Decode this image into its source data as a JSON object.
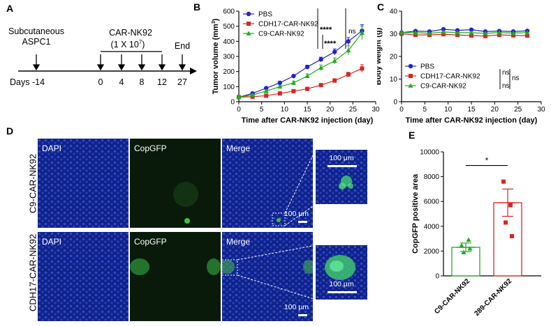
{
  "panels": {
    "a": "A",
    "b": "B",
    "c": "C",
    "d": "D",
    "e": "E"
  },
  "schema": {
    "subcutaneous": "Subcutaneous",
    "aspc1": "ASPC1",
    "carnk92": "CAR-NK92",
    "dose": "(1 X 10",
    "dose_exp": "7",
    "dose_close": ")",
    "end": "End",
    "days_label": "Days -14",
    "days": [
      "0",
      "4",
      "8",
      "12",
      "27"
    ]
  },
  "chart_data": [
    {
      "type": "line",
      "xlabel": "Time after CAR-NK92 injection (day)",
      "ylabel": "Tumor volume (mm",
      "ylabel_sup": "3",
      "ylabel_close": ")",
      "xlim": [
        0,
        30
      ],
      "ylim": [
        0,
        600
      ],
      "xticks": [
        "0",
        "5",
        "10",
        "15",
        "20",
        "25",
        "30"
      ],
      "yticks": [
        "0",
        "100",
        "200",
        "300",
        "400",
        "500",
        "600"
      ],
      "legend": "top-left",
      "series": [
        {
          "name": "PBS",
          "color": "#2222cc",
          "marker": "circle",
          "x": [
            0,
            3,
            6,
            9,
            12,
            15,
            18,
            21,
            24,
            27
          ],
          "y": [
            30,
            55,
            90,
            125,
            170,
            230,
            280,
            330,
            400,
            470
          ],
          "err": [
            5,
            5,
            8,
            8,
            10,
            12,
            15,
            20,
            25,
            40
          ]
        },
        {
          "name": "CDH17-CAR-NK92",
          "color": "#dd2222",
          "marker": "square",
          "x": [
            0,
            3,
            6,
            9,
            12,
            15,
            18,
            21,
            24,
            27
          ],
          "y": [
            30,
            33,
            40,
            55,
            70,
            85,
            110,
            140,
            180,
            220
          ],
          "err": [
            5,
            3,
            4,
            5,
            6,
            8,
            10,
            12,
            15,
            25
          ]
        },
        {
          "name": "C9-CAR-NK92",
          "color": "#22aa22",
          "marker": "triangle",
          "x": [
            0,
            3,
            6,
            9,
            12,
            15,
            18,
            21,
            24,
            27
          ],
          "y": [
            30,
            45,
            70,
            100,
            125,
            170,
            225,
            270,
            340,
            455
          ],
          "err": [
            5,
            5,
            8,
            10,
            12,
            15,
            18,
            20,
            30,
            45
          ]
        }
      ],
      "annotations": [
        "****",
        "****",
        "ns"
      ]
    },
    {
      "type": "line",
      "xlabel": "Time after CAR-NK92 injection (day)",
      "ylabel": "Body weight (g)",
      "xlim": [
        0,
        30
      ],
      "ylim": [
        0,
        40
      ],
      "xticks": [
        "0",
        "5",
        "10",
        "15",
        "20",
        "25",
        "30"
      ],
      "yticks": [
        "0",
        "10",
        "20",
        "30",
        "40"
      ],
      "legend": "bottom-left",
      "series": [
        {
          "name": "PBS",
          "color": "#2222cc",
          "marker": "circle",
          "x": [
            0,
            3,
            6,
            9,
            12,
            15,
            18,
            21,
            24,
            27
          ],
          "y": [
            30.5,
            31.2,
            31.0,
            32.0,
            31.5,
            31.8,
            31.0,
            31.2,
            31.0,
            31.3
          ]
        },
        {
          "name": "CDH17-CAR-NK92",
          "color": "#dd2222",
          "marker": "square",
          "x": [
            0,
            3,
            6,
            9,
            12,
            15,
            18,
            21,
            24,
            27
          ],
          "y": [
            30.0,
            29.5,
            29.5,
            29.8,
            29.5,
            29.2,
            29.0,
            29.5,
            29.3,
            29.2
          ]
        },
        {
          "name": "C9-CAR-NK92",
          "color": "#22aa22",
          "marker": "triangle",
          "x": [
            0,
            3,
            6,
            9,
            12,
            15,
            18,
            21,
            24,
            27
          ],
          "y": [
            30.5,
            30.5,
            30.2,
            30.8,
            30.5,
            30.5,
            30.2,
            30.5,
            30.3,
            30.5
          ]
        }
      ],
      "annotations": [
        "ns",
        "ns",
        "ns"
      ]
    },
    {
      "type": "bar",
      "ylabel": "CopGFP positive area",
      "ylim": [
        0,
        10000
      ],
      "yticks": [
        "0",
        "2000",
        "4000",
        "6000",
        "8000",
        "10000"
      ],
      "categories": [
        "C9-CAR-NK92",
        "289-CAR-NK92"
      ],
      "values": [
        2300,
        5900
      ],
      "err": [
        350,
        1100
      ],
      "colors": [
        "#22aa22",
        "#dd2222"
      ],
      "points": [
        [
          2450,
          2900,
          1900,
          2200
        ],
        [
          7600,
          5700,
          4300,
          3200
        ]
      ],
      "annotations": [
        "*"
      ]
    }
  ],
  "micrographs": {
    "dapi": "DAPI",
    "copgfp": "CopGFP",
    "merge": "Merge",
    "scale": "100 μm",
    "row1": "C9-CAR-NK92",
    "row2": "CDH17-CAR-NK92"
  }
}
